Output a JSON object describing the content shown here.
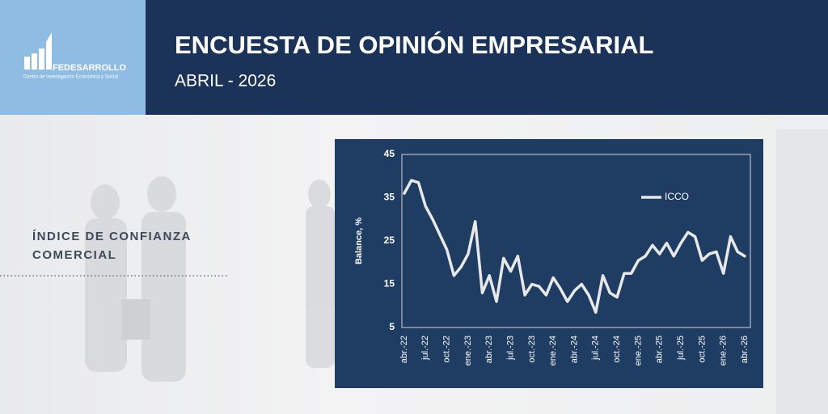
{
  "header": {
    "brand": "FEDESARROLLO",
    "tagline": "Centro de Investigación Económica y Social",
    "title": "ENCUESTA DE OPINIÓN EMPRESARIAL",
    "subtitle": "ABRIL - 2026"
  },
  "section": {
    "line1": "ÍNDICE DE CONFIANZA",
    "line2": "COMERCIAL"
  },
  "chart_data": {
    "type": "line",
    "y_label": "Balance, %",
    "categories": [
      "abr.-22",
      null,
      null,
      "jul.-22",
      null,
      null,
      "oct.-22",
      null,
      null,
      "ene.-23",
      null,
      null,
      "abr.-23",
      null,
      null,
      "jul.-23",
      null,
      null,
      "oct.-23",
      null,
      null,
      "ene.-24",
      null,
      null,
      "abr.-24",
      null,
      null,
      "jul.-24",
      null,
      null,
      "oct.-24",
      null,
      null,
      "ene.-25",
      null,
      null,
      "abr.-25",
      null,
      null,
      "jul.-25",
      null,
      null,
      "oct.-25",
      null,
      null,
      "ene.-26",
      null,
      null,
      "abr.-26"
    ],
    "series": [
      {
        "name": "ICCO",
        "color": "#e8e8e8",
        "values": [
          36,
          39,
          38.5,
          33,
          30,
          26.5,
          23,
          17,
          19,
          22,
          29.5,
          13,
          17,
          11,
          21,
          18,
          21.5,
          12.5,
          15,
          14.5,
          12.5,
          16.5,
          14,
          11,
          13.5,
          15,
          12.5,
          8.5,
          17,
          13,
          12,
          17.5,
          17.5,
          20.5,
          21.5,
          24,
          22,
          24.5,
          21.5,
          24.5,
          27,
          26,
          20.5,
          22,
          22.5,
          17.5,
          26,
          22.5,
          21.5
        ]
      }
    ],
    "ylim": [
      5,
      45
    ],
    "yticks": [
      5,
      15,
      25,
      35,
      45
    ],
    "grid": false,
    "legend": "top-right"
  }
}
